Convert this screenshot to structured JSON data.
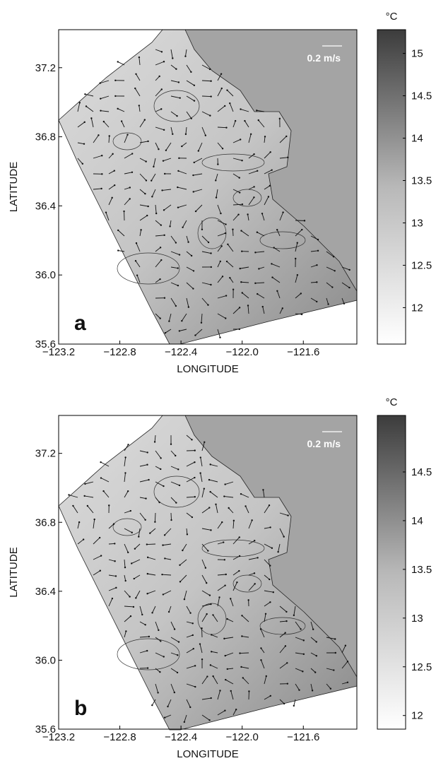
{
  "chart_data": [
    {
      "type": "contour",
      "panel_label": "a",
      "annotation": "0.2 m/s",
      "xlabel": "LONGITUDE",
      "ylabel": "LATITUDE",
      "xlim": [
        -123.2,
        -121.25
      ],
      "ylim": [
        35.6,
        37.42
      ],
      "xticks": [
        {
          "value": -123.2,
          "label": "−123.2"
        },
        {
          "value": -122.8,
          "label": "−122.8"
        },
        {
          "value": -122.4,
          "label": "−122.4"
        },
        {
          "value": -122.0,
          "label": "−122.0"
        },
        {
          "value": -121.6,
          "label": "−121.6"
        }
      ],
      "yticks": [
        35.6,
        {
          "value": 36.0,
          "label": "36.0"
        },
        36.4,
        36.8,
        37.2
      ],
      "colorbar": {
        "unit": "°C",
        "lim": [
          11.57,
          15.28
        ],
        "ticks": [
          12,
          12.5,
          13,
          13.5,
          14,
          14.5,
          15
        ]
      }
    },
    {
      "type": "contour",
      "panel_label": "b",
      "annotation": "0.2 m/s",
      "xlabel": "LONGITUDE",
      "ylabel": "LATITUDE",
      "xlim": [
        -123.2,
        -121.25
      ],
      "ylim": [
        35.6,
        37.42
      ],
      "xticks": [
        {
          "value": -123.2,
          "label": "−123.2"
        },
        {
          "value": -122.8,
          "label": "−122.8"
        },
        {
          "value": -122.4,
          "label": "−122.4"
        },
        {
          "value": -122.0,
          "label": "−122.0"
        },
        {
          "value": -121.6,
          "label": "−121.6"
        }
      ],
      "yticks": [
        35.6,
        {
          "value": 36.0,
          "label": "36.0"
        },
        36.4,
        36.8,
        37.2
      ],
      "colorbar": {
        "unit": "°C",
        "lim": [
          11.86,
          15.08
        ],
        "ticks": [
          12,
          12.5,
          13,
          13.5,
          14,
          14.5
        ]
      }
    }
  ]
}
